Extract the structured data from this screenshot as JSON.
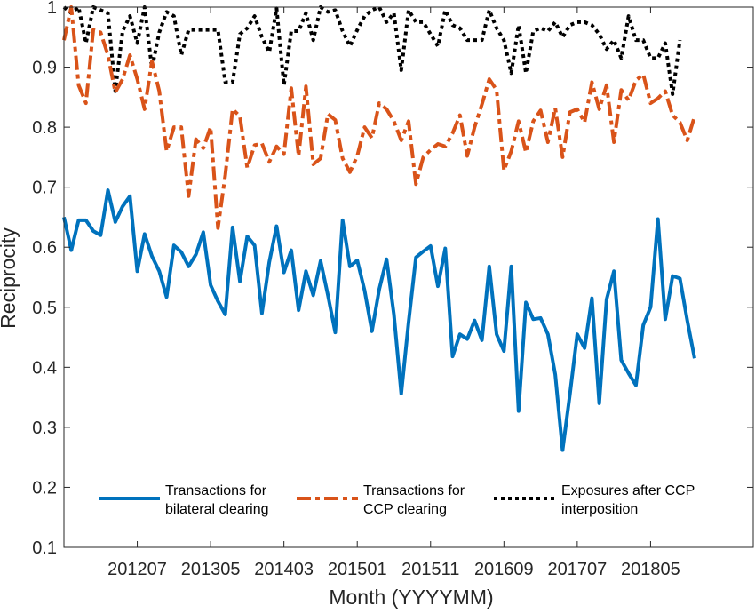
{
  "chart_data": {
    "type": "line",
    "title": "",
    "xlabel": "Month (YYYYMM)",
    "ylabel": "Reciprocity",
    "ylim": [
      0.1,
      1
    ],
    "y_ticks": [
      0.1,
      0.2,
      0.3,
      0.4,
      0.5,
      0.6,
      0.7,
      0.8,
      0.9,
      1
    ],
    "y_tick_labels": [
      "0.1",
      "0.2",
      "0.3",
      "0.4",
      "0.5",
      "0.6",
      "0.7",
      "0.8",
      "0.9",
      "1"
    ],
    "xlim": [
      0,
      94
    ],
    "x_ticks": [
      10,
      20,
      30,
      40,
      50,
      60,
      70,
      80
    ],
    "x_tick_labels": [
      "201207",
      "201305",
      "201403",
      "201501",
      "201511",
      "201609",
      "201707",
      "201805"
    ],
    "grid": false,
    "legend_position": "bottom",
    "series": [
      {
        "name": "Transactions for bilateral clearing",
        "legend_lines": [
          "Transactions for",
          "bilateral clearing"
        ],
        "color": "#0072BD",
        "style": "solid",
        "values": [
          0.65,
          0.595,
          0.645,
          0.645,
          0.627,
          0.62,
          0.695,
          0.642,
          0.668,
          0.685,
          0.56,
          0.622,
          0.585,
          0.56,
          0.517,
          0.603,
          0.592,
          0.568,
          0.588,
          0.625,
          0.537,
          0.51,
          0.488,
          0.633,
          0.543,
          0.618,
          0.603,
          0.49,
          0.575,
          0.635,
          0.558,
          0.595,
          0.495,
          0.56,
          0.52,
          0.577,
          0.52,
          0.458,
          0.645,
          0.568,
          0.578,
          0.528,
          0.46,
          0.53,
          0.58,
          0.488,
          0.356,
          0.475,
          0.583,
          0.593,
          0.602,
          0.535,
          0.598,
          0.418,
          0.455,
          0.447,
          0.478,
          0.445,
          0.568,
          0.455,
          0.427,
          0.568,
          0.327,
          0.508,
          0.48,
          0.482,
          0.455,
          0.388,
          0.262,
          0.355,
          0.455,
          0.432,
          0.515,
          0.34,
          0.513,
          0.56,
          0.412,
          0.39,
          0.37,
          0.47,
          0.5,
          0.647,
          0.48,
          0.552,
          0.548,
          0.478,
          0.415
        ]
      },
      {
        "name": "Transactions for CCP clearing",
        "legend_lines": [
          "Transactions for",
          "CCP clearing"
        ],
        "color": "#D95319",
        "style": "dashdot",
        "values": [
          0.945,
          1.0,
          0.87,
          0.84,
          0.962,
          0.958,
          0.92,
          0.858,
          0.88,
          0.92,
          0.88,
          0.83,
          0.91,
          0.86,
          0.76,
          0.8,
          0.8,
          0.685,
          0.78,
          0.765,
          0.8,
          0.632,
          0.72,
          0.83,
          0.818,
          0.732,
          0.77,
          0.773,
          0.742,
          0.768,
          0.755,
          0.865,
          0.752,
          0.868,
          0.738,
          0.748,
          0.822,
          0.812,
          0.748,
          0.725,
          0.752,
          0.8,
          0.782,
          0.84,
          0.83,
          0.81,
          0.778,
          0.81,
          0.705,
          0.75,
          0.762,
          0.772,
          0.768,
          0.79,
          0.82,
          0.752,
          0.8,
          0.838,
          0.88,
          0.862,
          0.728,
          0.76,
          0.81,
          0.758,
          0.81,
          0.828,
          0.775,
          0.832,
          0.75,
          0.825,
          0.83,
          0.808,
          0.875,
          0.83,
          0.87,
          0.775,
          0.862,
          0.845,
          0.878,
          0.888,
          0.84,
          0.848,
          0.86,
          0.82,
          0.808,
          0.778,
          0.818
        ]
      },
      {
        "name": "Exposures after CCP interposition",
        "legend_lines": [
          "Exposures after CCP",
          "interposition"
        ],
        "color": "#000000",
        "style": "dotted",
        "values": [
          1.0,
          0.99,
          1.0,
          0.94,
          1.0,
          0.995,
          0.99,
          0.86,
          0.96,
          0.985,
          0.94,
          1.0,
          0.898,
          0.958,
          0.992,
          0.985,
          0.92,
          0.962,
          0.962,
          0.962,
          0.962,
          0.962,
          0.875,
          0.875,
          0.955,
          0.965,
          0.985,
          0.95,
          0.925,
          0.998,
          0.87,
          0.96,
          0.96,
          0.99,
          0.945,
          1.0,
          0.992,
          0.995,
          0.96,
          0.935,
          0.962,
          0.985,
          0.995,
          1.0,
          0.975,
          0.99,
          0.895,
          0.995,
          0.975,
          0.975,
          0.955,
          0.935,
          0.995,
          0.97,
          0.965,
          0.945,
          0.945,
          0.945,
          0.995,
          0.965,
          0.945,
          0.89,
          0.97,
          0.89,
          0.96,
          0.965,
          0.96,
          0.975,
          0.95,
          0.97,
          0.975,
          0.975,
          0.97,
          0.955,
          0.93,
          0.945,
          0.915,
          0.985,
          0.945,
          0.945,
          0.915,
          0.915,
          0.94,
          0.855,
          0.945
        ]
      }
    ]
  }
}
